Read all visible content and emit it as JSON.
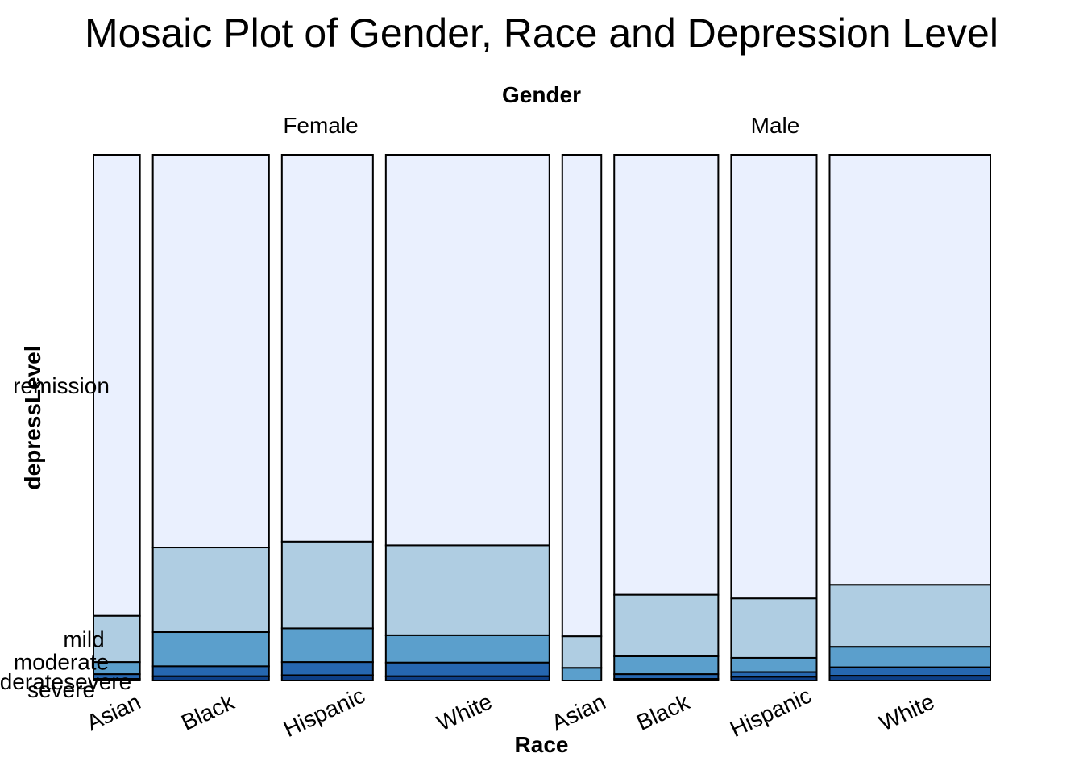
{
  "chart_data": {
    "type": "mosaic",
    "title": "Mosaic Plot of Gender, Race and Depression Level",
    "gender_title": "Gender",
    "xlabel": "Race",
    "ylabel": "depressLevel",
    "genders": [
      "Female",
      "Male"
    ],
    "races": [
      "Asian",
      "Black",
      "Hispanic",
      "White"
    ],
    "levels": [
      "remission",
      "mild",
      "moderate",
      "moderatesevere",
      "severe"
    ],
    "level_colors": [
      "#eaf0fe",
      "#afcde2",
      "#5b9fcc",
      "#2667b0",
      "#0e3f86"
    ],
    "column_widths": {
      "Female": [
        0.05,
        0.125,
        0.098,
        0.176
      ],
      "Male": [
        0.042,
        0.112,
        0.092,
        0.173
      ]
    },
    "proportions": {
      "Female": {
        "Asian": [
          0.877,
          0.088,
          0.023,
          0.009,
          0.003
        ],
        "Black": [
          0.747,
          0.161,
          0.065,
          0.019,
          0.008
        ],
        "Hispanic": [
          0.736,
          0.165,
          0.064,
          0.025,
          0.01
        ],
        "White": [
          0.743,
          0.171,
          0.052,
          0.026,
          0.008
        ],
        "Male": null
      },
      "Male": {
        "Asian": [
          0.916,
          0.06,
          0.024,
          0.0,
          0.0
        ],
        "Black": [
          0.837,
          0.117,
          0.034,
          0.009,
          0.003
        ],
        "Hispanic": [
          0.844,
          0.113,
          0.027,
          0.009,
          0.007
        ],
        "White": [
          0.818,
          0.118,
          0.039,
          0.016,
          0.009
        ]
      }
    },
    "row_labels_positions": "left, aligned with Asian-Female segments"
  }
}
